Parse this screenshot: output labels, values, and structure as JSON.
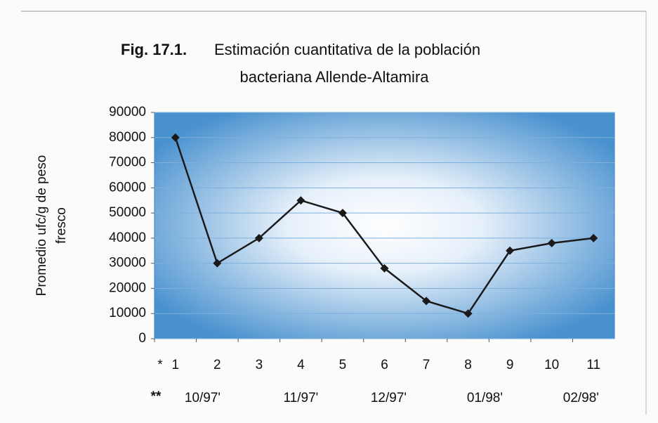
{
  "chart_data": {
    "type": "line",
    "title_label": "Fig. 17.1.",
    "title": [
      "Estimación cuantitativa de la población",
      "bacteriana Allende-Altamira"
    ],
    "ylabel": [
      "Promedio ufc/g de peso",
      "fresco"
    ],
    "x_marker": "*",
    "categories": [
      "1",
      "2",
      "3",
      "4",
      "5",
      "6",
      "7",
      "8",
      "9",
      "10",
      "11"
    ],
    "secondary_marker": "**",
    "secondary_labels": [
      "10/97'",
      "11/97'",
      "12/97'",
      "01/98'",
      "02/98'"
    ],
    "series": [
      {
        "name": null,
        "color": "#1a1a1a",
        "values": [
          80000,
          30000,
          40000,
          55000,
          50000,
          28000,
          15000,
          10000,
          35000,
          38000,
          40000
        ]
      }
    ],
    "ylim": [
      0,
      90000
    ],
    "yticks": [
      0,
      10000,
      20000,
      30000,
      40000,
      50000,
      60000,
      70000,
      80000,
      90000
    ],
    "grid": true
  }
}
